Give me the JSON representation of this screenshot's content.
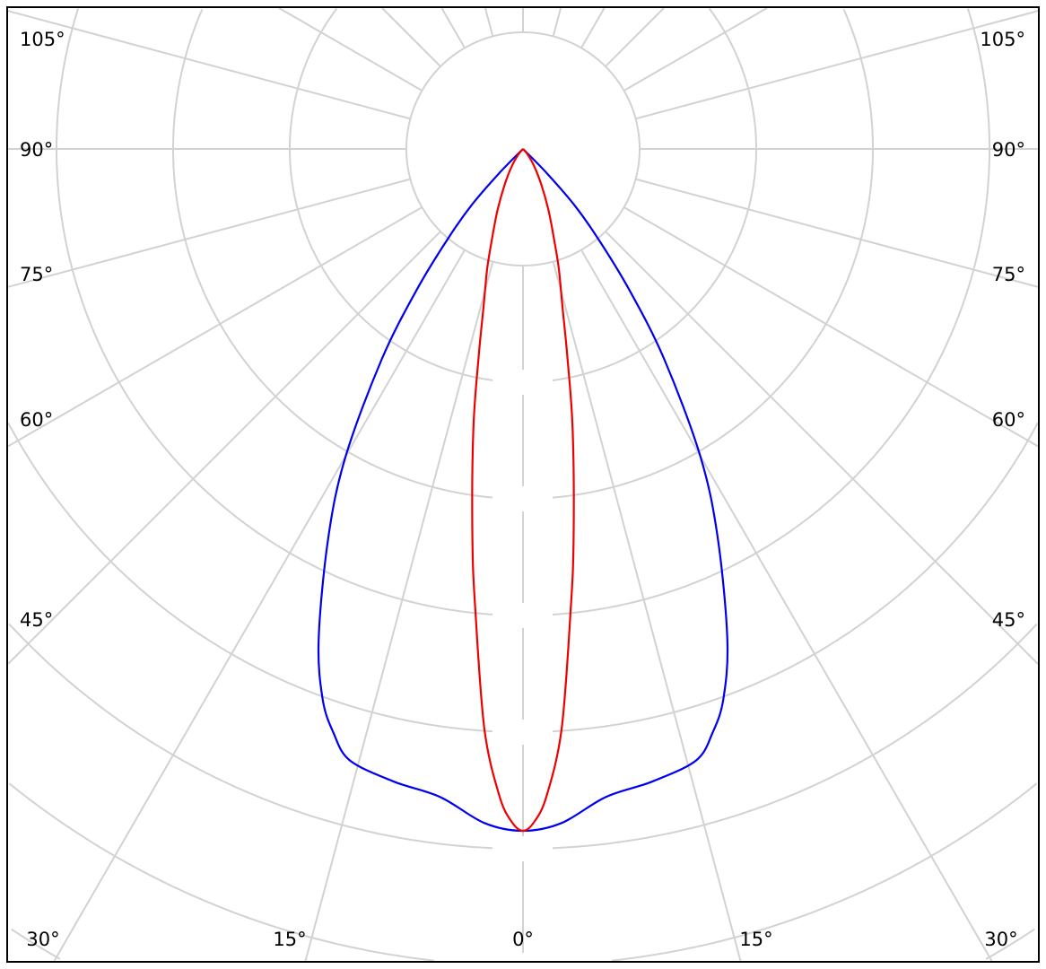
{
  "chart_data": {
    "type": "polar",
    "title": "",
    "angle_labels": {
      "left": [
        "105°",
        "90°",
        "75°",
        "60°",
        "45°"
      ],
      "right": [
        "105°",
        "90°",
        "75°",
        "60°",
        "45°"
      ],
      "bottom": [
        "30°",
        "15°",
        "0°",
        "15°",
        "30°"
      ]
    },
    "grid": true,
    "radial_line_step_deg": 15,
    "ring_count": 8,
    "intensity_unit": "relative",
    "series": [
      {
        "color": "#0000ee",
        "symmetric": true,
        "points": [
          [
            0,
            1.0
          ],
          [
            3.3,
            0.99
          ],
          [
            7.3,
            0.958
          ],
          [
            11.5,
            0.947
          ],
          [
            15.8,
            0.932
          ],
          [
            18,
            0.9
          ],
          [
            20,
            0.859
          ],
          [
            22.6,
            0.78
          ],
          [
            26.6,
            0.638
          ],
          [
            30,
            0.52
          ],
          [
            33.9,
            0.371
          ],
          [
            37,
            0.26
          ],
          [
            40,
            0.17
          ],
          [
            42.5,
            0.11
          ],
          [
            44.5,
            0.05
          ],
          [
            46,
            0.0
          ]
        ]
      },
      {
        "color": "#ee0000",
        "symmetric": true,
        "points": [
          [
            0,
            1.0
          ],
          [
            1,
            0.986
          ],
          [
            2.1,
            0.949
          ],
          [
            3.8,
            0.853
          ],
          [
            5.9,
            0.68
          ],
          [
            7.4,
            0.576
          ],
          [
            10,
            0.42
          ],
          [
            12,
            0.314
          ],
          [
            14,
            0.24
          ],
          [
            16.6,
            0.184
          ],
          [
            19,
            0.14
          ],
          [
            22.7,
            0.096
          ],
          [
            27,
            0.06
          ],
          [
            33,
            0.03
          ],
          [
            40,
            0.01
          ],
          [
            45,
            0.0
          ]
        ]
      }
    ]
  }
}
